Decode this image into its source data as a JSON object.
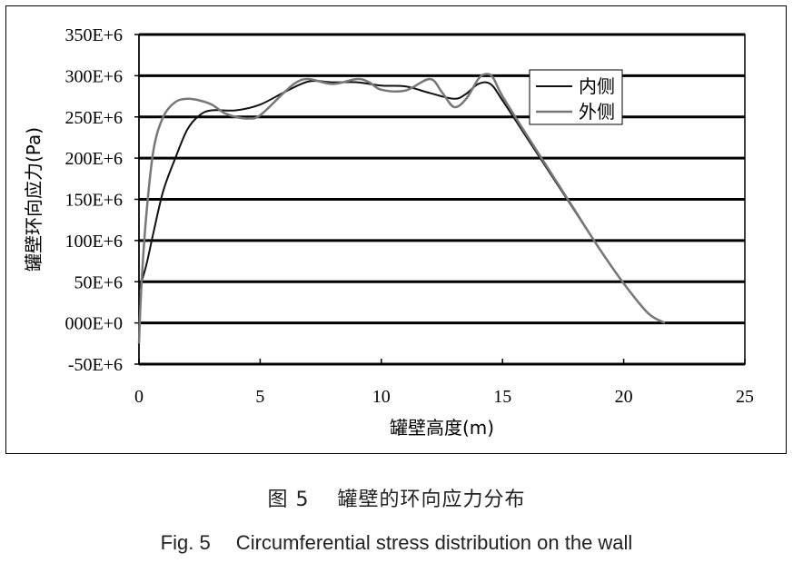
{
  "caption": {
    "cn": "图 5　 罐壁的环向应力分布",
    "en": "Fig. 5　 Circumferential stress distribution on the wall"
  },
  "chart_data": {
    "type": "line",
    "title": "",
    "xlabel": "罐壁高度(m)",
    "ylabel": "罐壁环向应力(Pa)",
    "xlim": [
      0,
      25
    ],
    "ylim": [
      -50000000,
      350000000
    ],
    "x_ticks": [
      0,
      5,
      10,
      15,
      20,
      25
    ],
    "x_tick_labels": [
      "0",
      "5",
      "10",
      "15",
      "20",
      "25"
    ],
    "y_ticks": [
      -50000000,
      0,
      50000000,
      100000000,
      150000000,
      200000000,
      250000000,
      300000000,
      350000000
    ],
    "y_tick_labels": [
      "-50E+6",
      "000E+0",
      "50E+6",
      "100E+6",
      "150E+6",
      "200E+6",
      "250E+6",
      "300E+6",
      "350E+6"
    ],
    "grid": "horizontal",
    "legend_position": "top-right",
    "series": [
      {
        "name": "内侧",
        "color": "#111111",
        "x": [
          0,
          0.3,
          0.6,
          1.0,
          1.5,
          2.0,
          2.5,
          3.0,
          4.0,
          5.0,
          6.0,
          7.0,
          8.0,
          9.0,
          10.0,
          11.0,
          12.0,
          13.0,
          13.5,
          14.0,
          14.5,
          15.0,
          16.0,
          17.0,
          18.0,
          19.0,
          20.0,
          21.0,
          21.7
        ],
        "y": [
          40000000,
          70000000,
          110000000,
          160000000,
          200000000,
          235000000,
          252000000,
          258000000,
          258000000,
          265000000,
          280000000,
          293000000,
          292000000,
          292000000,
          288000000,
          287000000,
          279000000,
          272000000,
          278000000,
          290000000,
          290000000,
          270000000,
          225000000,
          180000000,
          135000000,
          90000000,
          48000000,
          12000000,
          0
        ]
      },
      {
        "name": "外侧",
        "color": "#777777",
        "x": [
          0,
          0.1,
          0.3,
          0.6,
          1.0,
          1.5,
          2.0,
          2.5,
          3.0,
          3.5,
          4.0,
          4.5,
          5.0,
          6.0,
          6.5,
          7.0,
          8.0,
          9.0,
          9.5,
          10.0,
          11.0,
          12.0,
          12.5,
          13.0,
          13.5,
          14.0,
          14.3,
          14.6,
          15.0,
          16.0,
          17.0,
          18.0,
          19.0,
          20.0,
          21.0,
          21.7
        ],
        "y": [
          -25000000,
          45000000,
          130000000,
          210000000,
          250000000,
          268000000,
          272000000,
          270000000,
          265000000,
          255000000,
          250000000,
          248000000,
          252000000,
          280000000,
          292000000,
          296000000,
          290000000,
          296000000,
          292000000,
          283000000,
          282000000,
          296000000,
          280000000,
          262000000,
          272000000,
          296000000,
          302000000,
          298000000,
          275000000,
          228000000,
          182000000,
          136000000,
          90000000,
          48000000,
          12000000,
          0
        ]
      }
    ]
  }
}
